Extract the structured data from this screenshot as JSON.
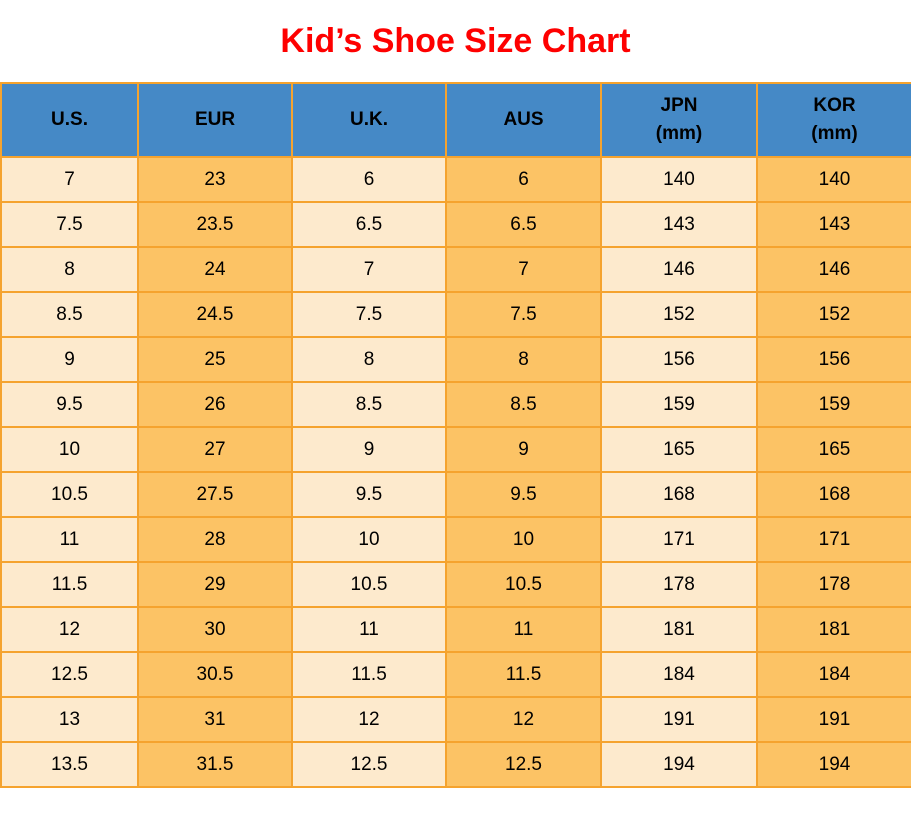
{
  "page": {
    "title": "Kid’s Shoe Size Chart"
  },
  "colors": {
    "title_text": "#fe0000",
    "header_background": "#4589c6",
    "header_text": "#000000",
    "light_column": "#fdeacd",
    "orange_column": "#fcc365",
    "grid_border": "#f5a32e",
    "cell_text": "#000000",
    "page_background": "#ffffff"
  },
  "chart_data": {
    "type": "table",
    "title": "Kid’s Shoe Size Chart",
    "headers": [
      {
        "label": "U.S.",
        "sublabel": ""
      },
      {
        "label": "EUR",
        "sublabel": ""
      },
      {
        "label": "U.K.",
        "sublabel": ""
      },
      {
        "label": "AUS",
        "sublabel": ""
      },
      {
        "label": "JPN",
        "sublabel": "(mm)"
      },
      {
        "label": "KOR",
        "sublabel": "(mm)"
      }
    ],
    "column_keys": [
      "us",
      "eur",
      "uk",
      "aus",
      "jpn-mm",
      "kor-mm"
    ],
    "rows": [
      [
        "7",
        "23",
        "6",
        "6",
        "140",
        "140"
      ],
      [
        "7.5",
        "23.5",
        "6.5",
        "6.5",
        "143",
        "143"
      ],
      [
        "8",
        "24",
        "7",
        "7",
        "146",
        "146"
      ],
      [
        "8.5",
        "24.5",
        "7.5",
        "7.5",
        "152",
        "152"
      ],
      [
        "9",
        "25",
        "8",
        "8",
        "156",
        "156"
      ],
      [
        "9.5",
        "26",
        "8.5",
        "8.5",
        "159",
        "159"
      ],
      [
        "10",
        "27",
        "9",
        "9",
        "165",
        "165"
      ],
      [
        "10.5",
        "27.5",
        "9.5",
        "9.5",
        "168",
        "168"
      ],
      [
        "11",
        "28",
        "10",
        "10",
        "171",
        "171"
      ],
      [
        "11.5",
        "29",
        "10.5",
        "10.5",
        "178",
        "178"
      ],
      [
        "12",
        "30",
        "11",
        "11",
        "181",
        "181"
      ],
      [
        "12.5",
        "30.5",
        "11.5",
        "11.5",
        "184",
        "184"
      ],
      [
        "13",
        "31",
        "12",
        "12",
        "191",
        "191"
      ],
      [
        "13.5",
        "31.5",
        "12.5",
        "12.5",
        "194",
        "194"
      ]
    ]
  }
}
